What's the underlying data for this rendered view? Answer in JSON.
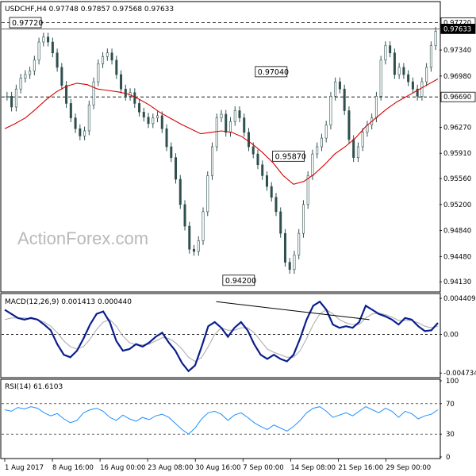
{
  "watermark": "ActionForex.com",
  "chart_data": [
    {
      "type": "candlestick",
      "title": "USDCHF,H4  0.97748 0.97857 0.97568 0.97633",
      "ylim": [
        0.94,
        0.98
      ],
      "y_ticks": [
        "0.97340",
        "0.96980",
        "0.96270",
        "0.95910",
        "0.95560",
        "0.95200",
        "0.94840",
        "0.94480",
        "0.94130"
      ],
      "y_tick_values": [
        0.9734,
        0.9698,
        0.9627,
        0.9591,
        0.9556,
        0.952,
        0.9484,
        0.9448,
        0.9413
      ],
      "x_ticks": [
        "1 Aug 2017",
        "8 Aug 16:00",
        "16 Aug 00:00",
        "23 Aug 08:00",
        "30 Aug 16:00",
        "7 Sep 00:00",
        "14 Sep 08:00",
        "21 Sep 16:00",
        "29 Sep 00:00"
      ],
      "x_tick_index": [
        0,
        44,
        88,
        132,
        176,
        220,
        264,
        308,
        352
      ],
      "levels": [
        {
          "label": "0.97720",
          "value": 0.9772,
          "style": "dashed"
        },
        {
          "label": "0.96690",
          "value": 0.9669,
          "style": "dashed"
        },
        {
          "label": "0.97633",
          "value": 0.97633,
          "style": "solid"
        }
      ],
      "annotations": [
        {
          "label": "0.97720",
          "value": 0.9772,
          "index": 8
        },
        {
          "label": "0.97040",
          "value": 0.9704,
          "index": 246
        },
        {
          "label": "0.95870",
          "value": 0.9587,
          "index": 262
        },
        {
          "label": "0.94200",
          "value": 0.942,
          "index": 216
        }
      ],
      "series_close": [
        0.967,
        0.9655,
        0.968,
        0.9695,
        0.97,
        0.9705,
        0.972,
        0.9745,
        0.9752,
        0.9745,
        0.973,
        0.971,
        0.9685,
        0.966,
        0.964,
        0.9625,
        0.9615,
        0.9622,
        0.9658,
        0.969,
        0.9715,
        0.9725,
        0.973,
        0.972,
        0.97,
        0.968,
        0.967,
        0.9675,
        0.966,
        0.9648,
        0.9641,
        0.9632,
        0.964,
        0.9643,
        0.9625,
        0.96,
        0.9585,
        0.9555,
        0.952,
        0.949,
        0.9458,
        0.9455,
        0.947,
        0.951,
        0.956,
        0.96,
        0.964,
        0.9645,
        0.962,
        0.9635,
        0.965,
        0.964,
        0.962,
        0.96,
        0.959,
        0.9575,
        0.956,
        0.9545,
        0.953,
        0.951,
        0.948,
        0.944,
        0.943,
        0.945,
        0.948,
        0.952,
        0.956,
        0.959,
        0.96,
        0.9612,
        0.963,
        0.967,
        0.969,
        0.968,
        0.965,
        0.961,
        0.9585,
        0.96,
        0.962,
        0.963,
        0.964,
        0.967,
        0.972,
        0.974,
        0.973,
        0.97,
        0.971,
        0.97,
        0.969,
        0.968,
        0.967,
        0.969,
        0.971,
        0.974,
        0.976
      ],
      "ma_20": [
        0.9625,
        0.9632,
        0.964,
        0.9652,
        0.9665,
        0.9676,
        0.9684,
        0.9688,
        0.9686,
        0.968,
        0.9678,
        0.9676,
        0.9673,
        0.9666,
        0.9658,
        0.9648,
        0.964,
        0.9632,
        0.9625,
        0.9618,
        0.962,
        0.9622,
        0.962,
        0.9614,
        0.9604,
        0.9592,
        0.9578,
        0.956,
        0.9548,
        0.9552,
        0.9562,
        0.9575,
        0.959,
        0.96,
        0.9612,
        0.9628,
        0.964,
        0.9652,
        0.9662,
        0.967,
        0.9678,
        0.9686,
        0.9694
      ],
      "macd": {
        "label": "MACD(12,26,9) 0.001413 0.000440",
        "y_ticks": [
          "0.004409",
          "0.00",
          "-0.004734"
        ],
        "y_tick_values": [
          0.004409,
          0,
          -0.004734
        ],
        "ylim": [
          -0.0051,
          0.0048
        ],
        "line": [
          0.003,
          0.0025,
          0.002,
          0.0018,
          0.002,
          0.0018,
          0.0012,
          0.0005,
          -0.0012,
          -0.0025,
          -0.0028,
          -0.002,
          -0.0005,
          0.0012,
          0.0025,
          0.0028,
          0.0015,
          -0.0008,
          -0.002,
          -0.0018,
          -0.0012,
          -0.0015,
          -0.001,
          -0.0003,
          0.0002,
          -0.001,
          -0.002,
          -0.0035,
          -0.0045,
          -0.0038,
          -0.0015,
          0.001,
          0.0015,
          0.0008,
          -0.0003,
          0.0008,
          0.0015,
          0.0005,
          -0.0012,
          -0.0025,
          -0.003,
          -0.0025,
          -0.003,
          -0.0033,
          -0.0025,
          -0.0005,
          0.0018,
          0.0035,
          0.004,
          0.003,
          0.0012,
          0.0008,
          0.001,
          0.0008,
          0.0015,
          0.0035,
          0.003,
          0.0025,
          0.0022,
          0.0018,
          0.0012,
          0.002,
          0.0018,
          0.001,
          0.0004,
          0.0005,
          0.0014
        ],
        "signal": [
          0.0018,
          0.002,
          0.002,
          0.002,
          0.0019,
          0.0018,
          0.0015,
          0.001,
          0.0002,
          -0.0008,
          -0.0015,
          -0.0018,
          -0.0015,
          -0.0006,
          0.0006,
          0.0015,
          0.0018,
          0.001,
          -0.0002,
          -0.001,
          -0.0013,
          -0.0013,
          -0.0012,
          -0.0008,
          -0.0004,
          -0.0005,
          -0.001,
          -0.0018,
          -0.0028,
          -0.0033,
          -0.0028,
          -0.0015,
          0.0,
          0.0008,
          0.0005,
          0.0005,
          0.0008,
          0.0008,
          0.0002,
          -0.0008,
          -0.0018,
          -0.0022,
          -0.0025,
          -0.0028,
          -0.0028,
          -0.002,
          -0.0005,
          0.0012,
          0.0025,
          0.003,
          0.0025,
          0.0018,
          0.0014,
          0.0012,
          0.0012,
          0.002,
          0.0025,
          0.0026,
          0.0024,
          0.0021,
          0.0017,
          0.0017,
          0.0017,
          0.0014,
          0.001,
          0.0008,
          0.001
        ],
        "divergence_line": {
          "from": [
            0.49,
            0.004
          ],
          "to": [
            0.84,
            0.0018
          ]
        }
      },
      "rsi": {
        "label": "RSI(14) 61.6103",
        "y_ticks": [
          "100",
          "70",
          "30",
          "0"
        ],
        "y_tick_values": [
          100,
          70,
          30,
          0
        ],
        "levels": [
          70,
          30
        ],
        "values": [
          62,
          60,
          65,
          63,
          66,
          64,
          58,
          54,
          57,
          50,
          45,
          48,
          58,
          62,
          64,
          60,
          52,
          48,
          55,
          50,
          47,
          52,
          49,
          54,
          56,
          52,
          44,
          36,
          30,
          38,
          50,
          58,
          60,
          56,
          48,
          55,
          58,
          52,
          45,
          40,
          36,
          42,
          38,
          34,
          40,
          48,
          58,
          64,
          66,
          60,
          52,
          55,
          58,
          54,
          60,
          66,
          62,
          58,
          64,
          60,
          52,
          60,
          57,
          50,
          54,
          56,
          62
        ]
      }
    }
  ]
}
